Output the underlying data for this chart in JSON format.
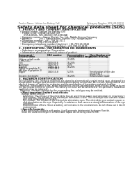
{
  "bg_color": "#ffffff",
  "header_left": "Product Name: Lithium Ion Battery Cell",
  "header_right_l1": "Reference Number: SDS-LIB-00010",
  "header_right_l2": "Established / Revision: Dec.1.2010",
  "title": "Safety data sheet for chemical products (SDS)",
  "section1_header": "1. PRODUCT AND COMPANY IDENTIFICATION",
  "section1_lines": [
    "  • Product name: Lithium Ion Battery Cell",
    "  • Product code: Cylindrical-type cell",
    "       (IVR-18650L, IVR-18650L, IVR-18650A)",
    "  • Company name:    Sanyo Electric Co., Ltd., Mobile Energy Company",
    "  • Address:          2001, Kamimashiro, Sumoto City, Hyogo, Japan",
    "  • Telephone number:  +81-799-26-4111",
    "  • Fax number:  +81-799-26-4129",
    "  • Emergency telephone number (daytime): +81-799-26-3842",
    "                                     (Night and holiday): +81-799-26-4101"
  ],
  "section2_header": "2. COMPOSITION / INFORMATION ON INGREDIENTS",
  "section2_lines": [
    "  • Substance or preparation: Preparation",
    "  • Information about the chemical nature of product:"
  ],
  "table_col_headers_r1": [
    "Component /",
    "CAS number",
    "Concentration /",
    "Classification and"
  ],
  "table_col_headers_r2": [
    "Several name",
    "",
    "Concentration range",
    "hazard labeling"
  ],
  "table_rows": [
    [
      "Lithium cobalt oxide\n(LiMn₂CoO₂)",
      "-",
      "30-40%",
      "-"
    ],
    [
      "Iron",
      "7439-89-6",
      "10-20%",
      "-"
    ],
    [
      "Aluminum",
      "7429-90-5",
      "2-5%",
      "-"
    ],
    [
      "Graphite\n(Metal in graphite-1)\n(All film in graphite-1)",
      "77081-42-5\n77581-44-2",
      "10-20%",
      "-"
    ],
    [
      "Copper",
      "7440-50-8",
      "5-15%",
      "Sensitization of the skin\ngroup R42.2"
    ],
    [
      "Organic electrolyte",
      "-",
      "10-20%",
      "Inflammable liquid"
    ]
  ],
  "section3_header": "3. HAZARDS IDENTIFICATION",
  "section3_lines": [
    "For the battery cell, chemical materials are stored in a hermetically sealed metal case, designed to withstand",
    "temperature changes and pressure-concentrations during normal use. As a result, during normal use, there is no",
    "physical danger of ignition or explosion and thermal-danger of hazardous materials leakage.",
    "  However, if exposed to a fire, added mechanical shocks, decomposed, short-electric shock or by misuse,",
    "the gas maybe vented or ejected. The battery cell case will be breached or fire-partitions, hazardous",
    "materials may be released.",
    "  Moreover, if heated strongly by the surrounding fire, solid gas may be emitted."
  ],
  "sub1_header": "  • Most important hazard and effects:",
  "sub1_lines": [
    "    Human health effects:",
    "      Inhalation: The release of the electrolyte has an anesthesia action and stimulates in respiratory tract.",
    "      Skin contact: The release of the electrolyte stimulates a skin. The electrolyte skin contact causes a",
    "      sore and stimulation on the skin.",
    "      Eye contact: The release of the electrolyte stimulates eyes. The electrolyte eye contact causes a sore",
    "      and stimulation on the eye. Especially, a substance that causes a strong inflammation of the eye is",
    "      contained.",
    "      Environmental effects: Since a battery cell remains in the environment, do not throw out it into the",
    "      environment."
  ],
  "sub2_header": "  • Specific hazards:",
  "sub2_lines": [
    "    If the electrolyte contacts with water, it will generate detrimental hydrogen fluoride.",
    "    Since the used electrolyte is inflammable liquid, do not bring close to fire."
  ]
}
